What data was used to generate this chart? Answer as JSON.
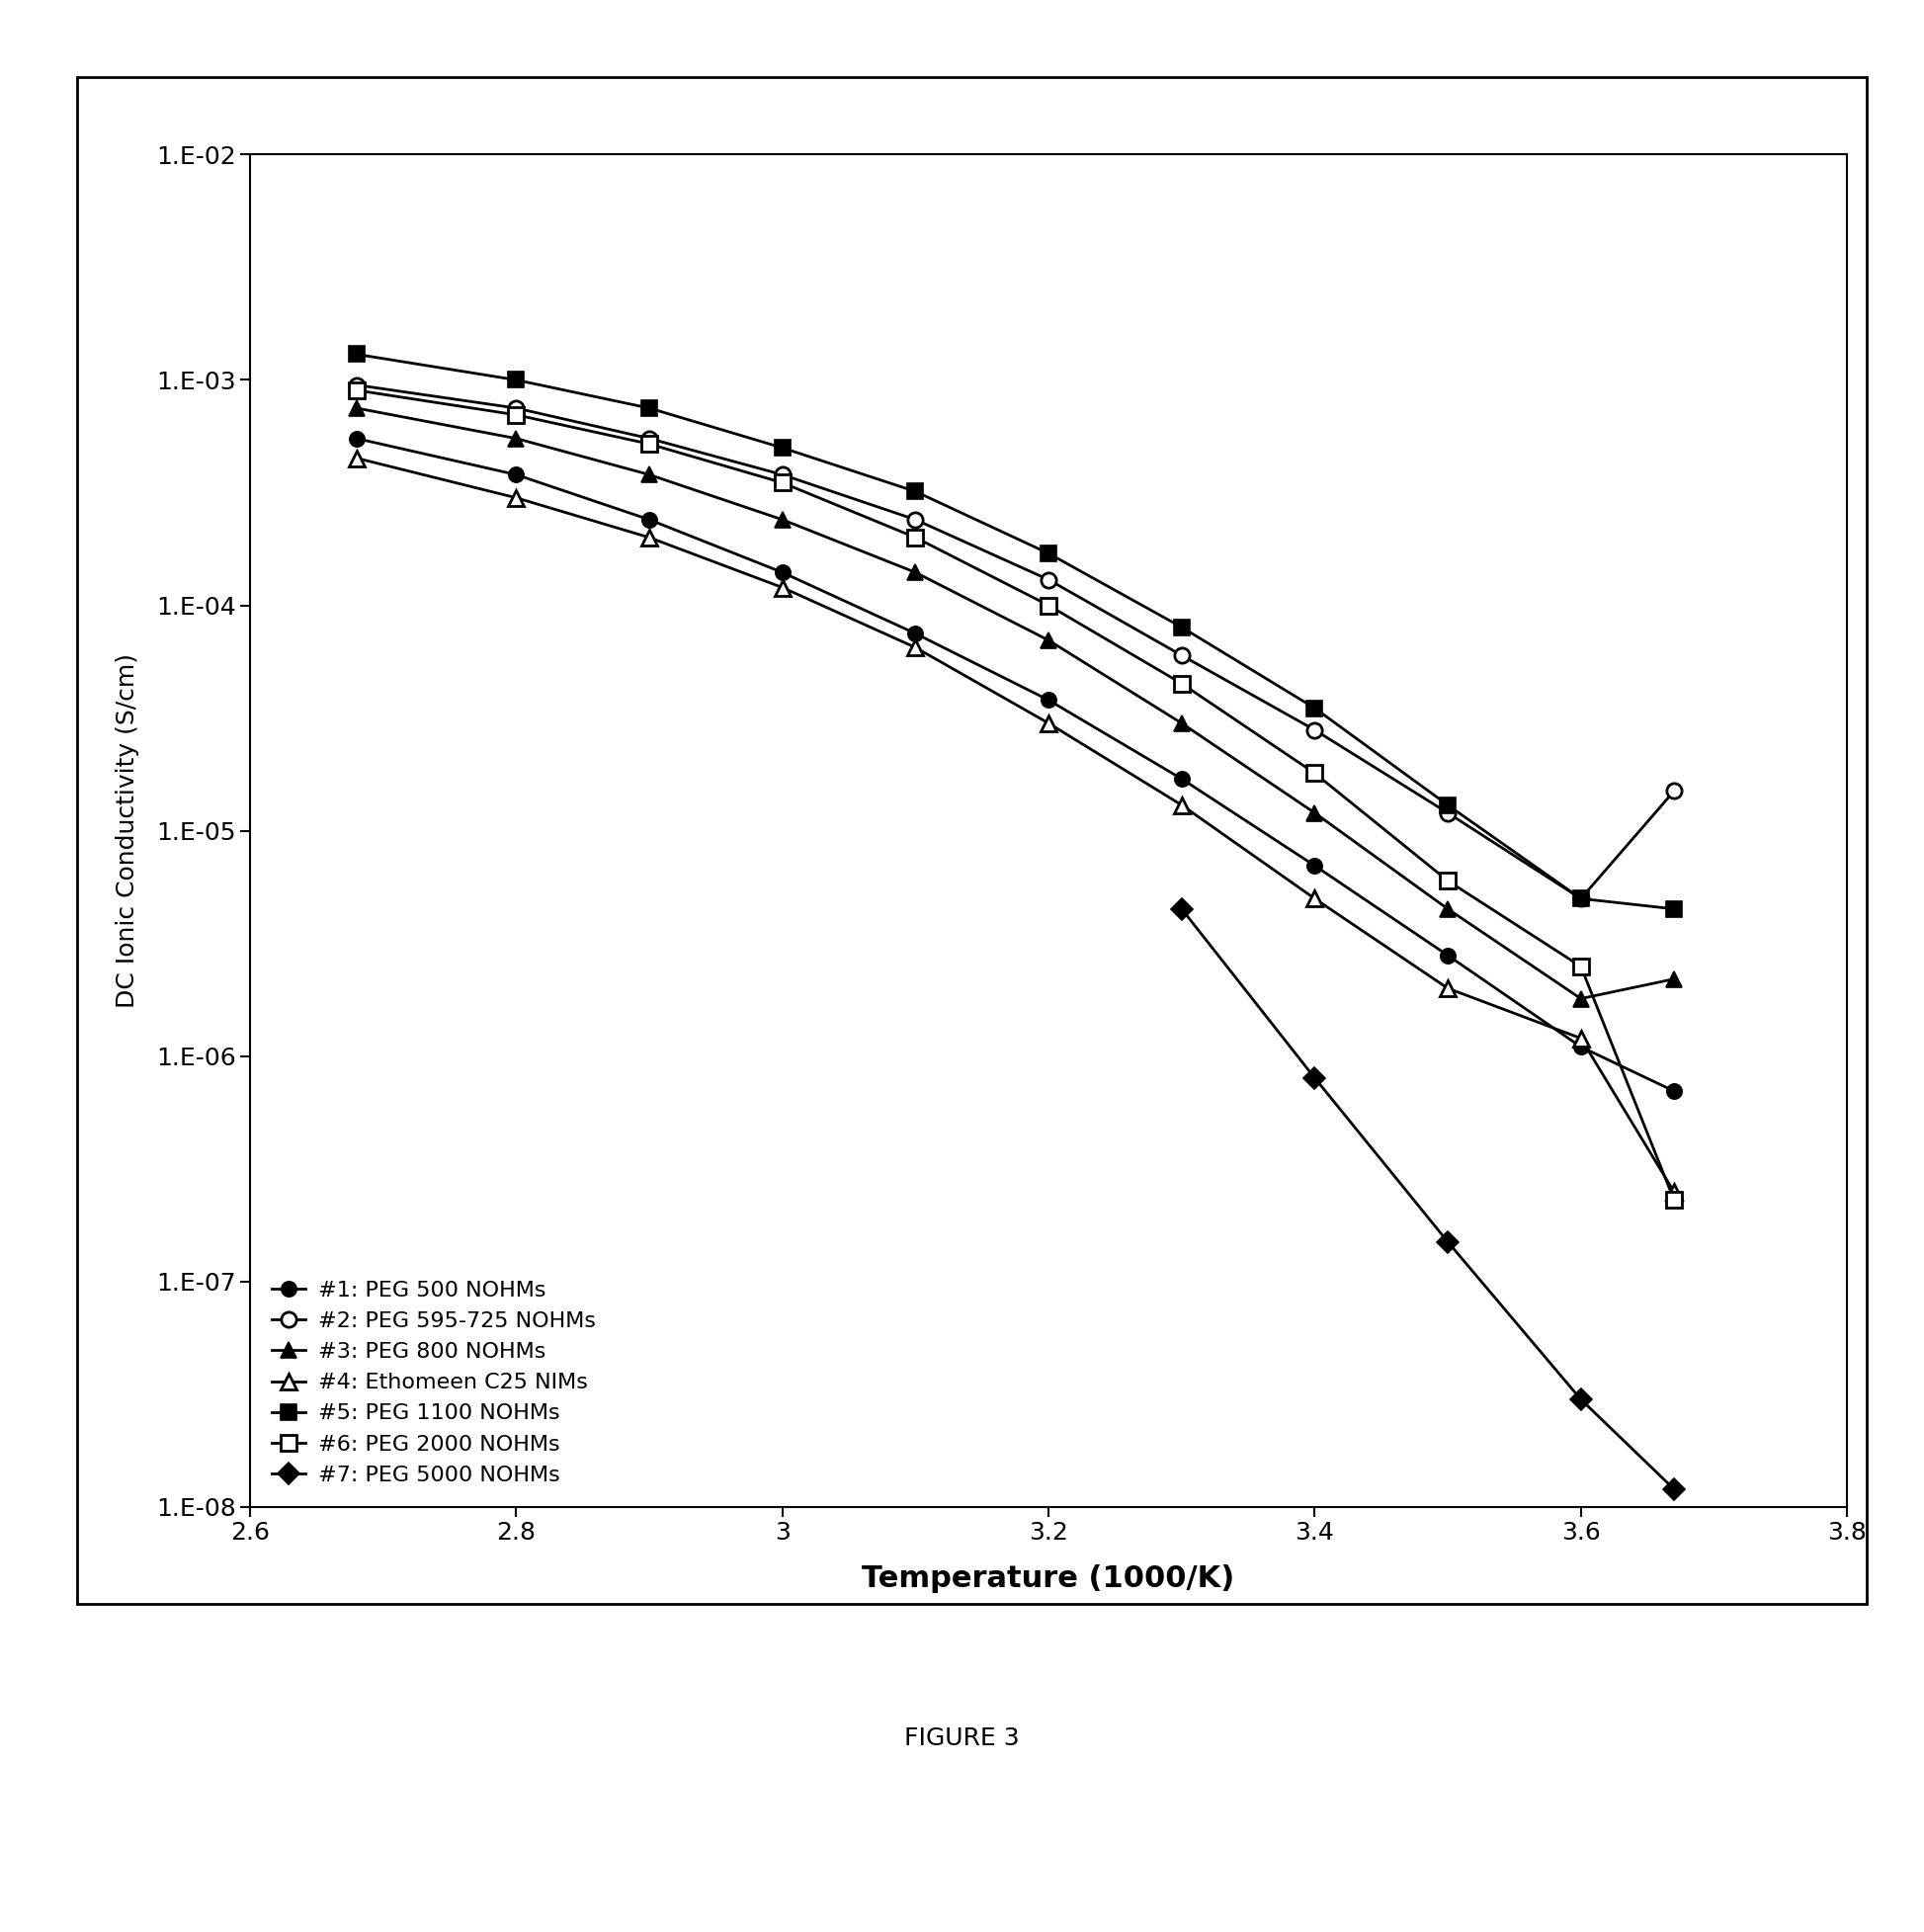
{
  "figure_caption": "FIGURE 3",
  "xlabel": "Temperature (1000/K)",
  "ylabel": "DC Ionic Conductivity (S/cm)",
  "xlim": [
    2.6,
    3.8
  ],
  "ylim": [
    1e-08,
    0.01
  ],
  "xticks": [
    2.6,
    2.8,
    3.0,
    3.2,
    3.4,
    3.6,
    3.8
  ],
  "xtick_labels": [
    "2.6",
    "2.8",
    "3",
    "3.2",
    "3.4",
    "3.6",
    "3.8"
  ],
  "ytick_exps": [
    -8,
    -7,
    -6,
    -5,
    -4,
    -3,
    -2
  ],
  "series": [
    {
      "label": "#1: PEG 500 NOHMs",
      "marker": "o",
      "filled": true,
      "x": [
        2.68,
        2.8,
        2.9,
        3.0,
        3.1,
        3.2,
        3.3,
        3.4,
        3.5,
        3.6,
        3.67
      ],
      "y": [
        0.00055,
        0.00038,
        0.00024,
        0.00014,
        7.5e-05,
        3.8e-05,
        1.7e-05,
        7e-06,
        2.8e-06,
        1.1e-06,
        7e-07
      ]
    },
    {
      "label": "#2: PEG 595-725 NOHMs",
      "marker": "o",
      "filled": false,
      "x": [
        2.68,
        2.8,
        2.9,
        3.0,
        3.1,
        3.2,
        3.3,
        3.4,
        3.5,
        3.6,
        3.67
      ],
      "y": [
        0.00095,
        0.00075,
        0.00055,
        0.00038,
        0.00024,
        0.00013,
        6e-05,
        2.8e-05,
        1.2e-05,
        5e-06,
        1.5e-05
      ]
    },
    {
      "label": "#3: PEG 800 NOHMs",
      "marker": "^",
      "filled": true,
      "x": [
        2.68,
        2.8,
        2.9,
        3.0,
        3.1,
        3.2,
        3.3,
        3.4,
        3.5,
        3.6,
        3.67
      ],
      "y": [
        0.00075,
        0.00055,
        0.00038,
        0.00024,
        0.00014,
        7e-05,
        3e-05,
        1.2e-05,
        4.5e-06,
        1.8e-06,
        2.2e-06
      ]
    },
    {
      "label": "#4: Ethomeen C25 NIMs",
      "marker": "^",
      "filled": false,
      "x": [
        2.68,
        2.8,
        2.9,
        3.0,
        3.1,
        3.2,
        3.3,
        3.4,
        3.5,
        3.6,
        3.67
      ],
      "y": [
        0.00045,
        0.0003,
        0.0002,
        0.00012,
        6.5e-05,
        3e-05,
        1.3e-05,
        5e-06,
        2e-06,
        1.2e-06,
        2.5e-07
      ]
    },
    {
      "label": "#5: PEG 1100 NOHMs",
      "marker": "s",
      "filled": true,
      "x": [
        2.68,
        2.8,
        2.9,
        3.0,
        3.1,
        3.2,
        3.3,
        3.4,
        3.5,
        3.6,
        3.67
      ],
      "y": [
        0.0013,
        0.001,
        0.00075,
        0.0005,
        0.00032,
        0.00017,
        8e-05,
        3.5e-05,
        1.3e-05,
        5e-06,
        4.5e-06
      ]
    },
    {
      "label": "#6: PEG 2000 NOHMs",
      "marker": "s",
      "filled": false,
      "x": [
        2.68,
        2.8,
        2.9,
        3.0,
        3.1,
        3.2,
        3.3,
        3.4,
        3.5,
        3.6,
        3.67
      ],
      "y": [
        0.0009,
        0.0007,
        0.00052,
        0.00035,
        0.0002,
        0.0001,
        4.5e-05,
        1.8e-05,
        6e-06,
        2.5e-06,
        2.3e-07
      ]
    },
    {
      "label": "#7: PEG 5000 NOHMs",
      "marker": "D",
      "filled": true,
      "x": [
        3.3,
        3.4,
        3.5,
        3.6,
        3.67
      ],
      "y": [
        4.5e-06,
        8e-07,
        1.5e-07,
        3e-08,
        1.2e-08
      ]
    }
  ]
}
